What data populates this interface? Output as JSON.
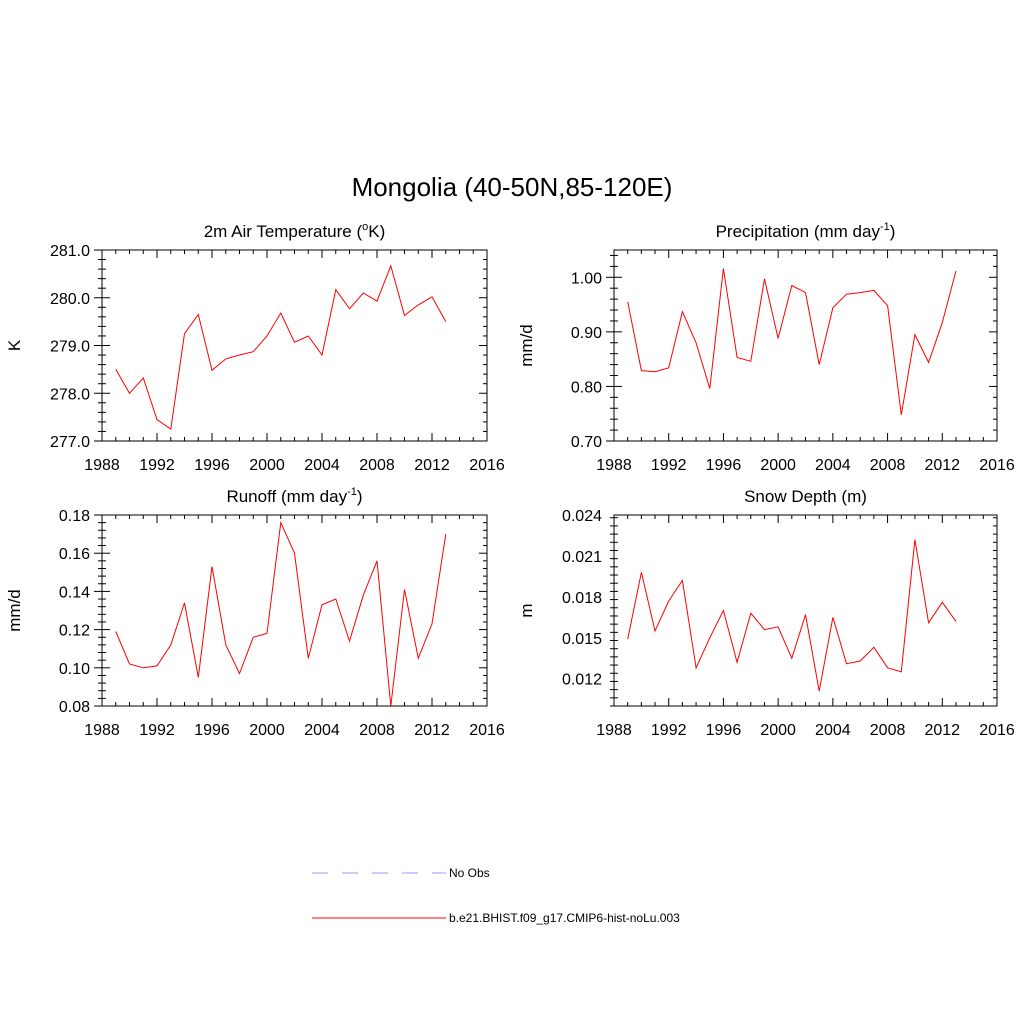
{
  "page": {
    "title": "Mongolia (40-50N,85-120E)"
  },
  "colors": {
    "model": "#ff0000",
    "obs": "#9999ff"
  },
  "legend": {
    "items": [
      {
        "label": "No Obs",
        "style": "dashed",
        "color": "#9999ff"
      },
      {
        "label": "b.e21.BHIST.f09_g17.CMIP6-hist-noLu.003",
        "style": "solid",
        "color": "#ff0000"
      }
    ]
  },
  "chart_data": [
    {
      "type": "line",
      "title": "2m Air Temperature (",
      "title_sup": "o",
      "title_tail": "K)",
      "ylabel": "K",
      "xlim": [
        1988,
        2016
      ],
      "ylim": [
        277.0,
        281.0
      ],
      "xticks": [
        "1988",
        "1992",
        "1996",
        "2000",
        "2004",
        "2008",
        "2012",
        "2016"
      ],
      "yticks": [
        "277.0",
        "278.0",
        "279.0",
        "280.0",
        "281.0"
      ],
      "series": [
        {
          "x": [
            1989,
            1990,
            1991,
            1992,
            1993,
            1994,
            1995,
            1996,
            1997,
            1998,
            1999,
            2000,
            2001,
            2002,
            2003,
            2004,
            2005,
            2006,
            2007,
            2008,
            2009,
            2010,
            2011,
            2012,
            2013
          ],
          "values": [
            278.5,
            278.0,
            278.32,
            277.45,
            277.25,
            279.25,
            279.65,
            278.48,
            278.72,
            278.8,
            278.87,
            279.2,
            279.68,
            279.07,
            279.2,
            278.8,
            280.17,
            279.77,
            280.1,
            279.93,
            280.67,
            279.63,
            279.85,
            280.02,
            279.5
          ]
        }
      ]
    },
    {
      "type": "line",
      "title": "Precipitation (mm day",
      "title_sup": "-1",
      "title_tail": ")",
      "ylabel": "mm/d",
      "xlim": [
        1988,
        2016
      ],
      "ylim": [
        0.7,
        1.05
      ],
      "xticks": [
        "1988",
        "1992",
        "1996",
        "2000",
        "2004",
        "2008",
        "2012",
        "2016"
      ],
      "yticks": [
        "0.70",
        "0.80",
        "0.90",
        "1.00"
      ],
      "series": [
        {
          "x": [
            1989,
            1990,
            1991,
            1992,
            1993,
            1994,
            1995,
            1996,
            1997,
            1998,
            1999,
            2000,
            2001,
            2002,
            2003,
            2004,
            2005,
            2006,
            2007,
            2008,
            2009,
            2010,
            2011,
            2012,
            2013
          ],
          "values": [
            0.955,
            0.829,
            0.827,
            0.834,
            0.937,
            0.88,
            0.796,
            1.016,
            0.853,
            0.846,
            0.997,
            0.888,
            0.985,
            0.972,
            0.84,
            0.944,
            0.969,
            0.972,
            0.976,
            0.948,
            0.748,
            0.895,
            0.844,
            0.917,
            1.012
          ]
        }
      ]
    },
    {
      "type": "line",
      "title": "Runoff (mm day",
      "title_sup": "-1",
      "title_tail": ")",
      "ylabel": "mm/d",
      "xlim": [
        1988,
        2016
      ],
      "ylim": [
        0.08,
        0.18
      ],
      "xticks": [
        "1988",
        "1992",
        "1996",
        "2000",
        "2004",
        "2008",
        "2012",
        "2016"
      ],
      "yticks": [
        "0.08",
        "0.10",
        "0.12",
        "0.14",
        "0.16",
        "0.18"
      ],
      "series": [
        {
          "x": [
            1989,
            1990,
            1991,
            1992,
            1993,
            1994,
            1995,
            1996,
            1997,
            1998,
            1999,
            2000,
            2001,
            2002,
            2003,
            2004,
            2005,
            2006,
            2007,
            2008,
            2009,
            2010,
            2011,
            2012,
            2013
          ],
          "values": [
            0.119,
            0.102,
            0.1,
            0.101,
            0.112,
            0.134,
            0.095,
            0.153,
            0.112,
            0.097,
            0.116,
            0.118,
            0.176,
            0.16,
            0.105,
            0.133,
            0.136,
            0.114,
            0.138,
            0.156,
            0.08,
            0.141,
            0.105,
            0.123,
            0.17
          ]
        }
      ]
    },
    {
      "type": "line",
      "title": "Snow Depth (m)",
      "title_sup": "",
      "title_tail": "",
      "ylabel": "m",
      "xlim": [
        1988,
        2016
      ],
      "ylim": [
        0.01,
        0.024
      ],
      "xticks": [
        "1988",
        "1992",
        "1996",
        "2000",
        "2004",
        "2008",
        "2012",
        "2016"
      ],
      "yticks": [
        "0.012",
        "0.015",
        "0.018",
        "0.021",
        "0.024"
      ],
      "series": [
        {
          "x": [
            1989,
            1990,
            1991,
            1992,
            1993,
            1994,
            1995,
            1996,
            1997,
            1998,
            1999,
            2000,
            2001,
            2002,
            2003,
            2004,
            2005,
            2006,
            2007,
            2008,
            2009,
            2010,
            2011,
            2012,
            2013
          ],
          "values": [
            0.0149,
            0.0198,
            0.0155,
            0.0177,
            0.0192,
            0.0128,
            0.015,
            0.017,
            0.0132,
            0.0168,
            0.0156,
            0.0158,
            0.0135,
            0.0167,
            0.0111,
            0.0165,
            0.0131,
            0.0133,
            0.0143,
            0.0128,
            0.0125,
            0.0222,
            0.0161,
            0.0176,
            0.0162
          ]
        }
      ]
    }
  ]
}
